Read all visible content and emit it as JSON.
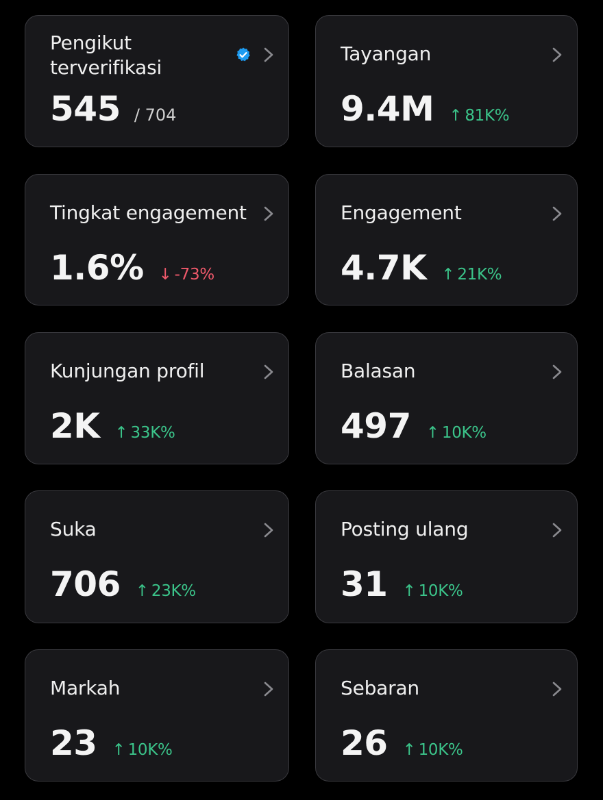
{
  "colors": {
    "background": "#000000",
    "card": "#18181b",
    "border": "#3a3a3f",
    "up": "#3bc48a",
    "down": "#f0596b",
    "verified": "#1d9bf0"
  },
  "cards": [
    {
      "label": "Pengikut terverifikasi",
      "value": "545",
      "sub": "/ 704",
      "icon": "verified-badge-icon"
    },
    {
      "label": "Tayangan",
      "value": "9.4M",
      "delta": "81K%",
      "arrow": "↑",
      "trend": "up"
    },
    {
      "label": "Tingkat engagement",
      "value": "1.6%",
      "delta": "-73%",
      "arrow": "↓",
      "trend": "down"
    },
    {
      "label": "Engagement",
      "value": "4.7K",
      "delta": "21K%",
      "arrow": "↑",
      "trend": "up"
    },
    {
      "label": "Kunjungan profil",
      "value": "2K",
      "delta": "33K%",
      "arrow": "↑",
      "trend": "up"
    },
    {
      "label": "Balasan",
      "value": "497",
      "delta": "10K%",
      "arrow": "↑",
      "trend": "up"
    },
    {
      "label": "Suka",
      "value": "706",
      "delta": "23K%",
      "arrow": "↑",
      "trend": "up"
    },
    {
      "label": "Posting ulang",
      "value": "31",
      "delta": "10K%",
      "arrow": "↑",
      "trend": "up"
    },
    {
      "label": "Markah",
      "value": "23",
      "delta": "10K%",
      "arrow": "↑",
      "trend": "up"
    },
    {
      "label": "Sebaran",
      "value": "26",
      "delta": "10K%",
      "arrow": "↑",
      "trend": "up"
    }
  ]
}
